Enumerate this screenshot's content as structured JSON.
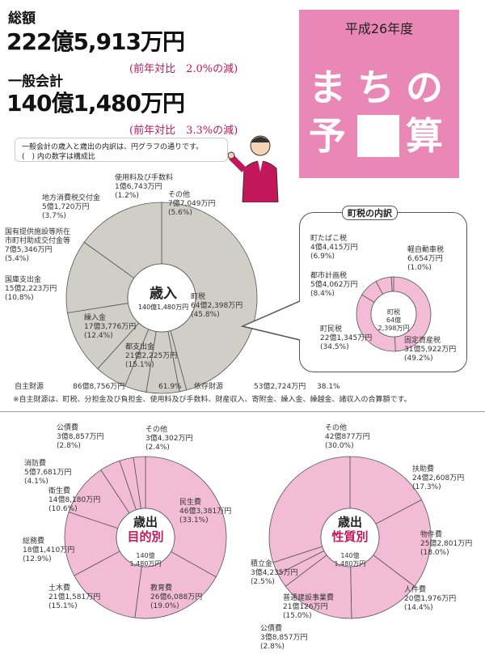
{
  "header": {
    "total_label": "総額",
    "total_amount": "222億5,913万円",
    "total_change": "(前年対比　2.0%の減)",
    "general_label": "一般会計",
    "general_amount": "140億1,480万円",
    "general_change": "(前年対比　3.3%の減)",
    "note_line1": "一般会計の歳入と歳出の内訳は、円グラフの通りです。",
    "note_line2": "(　) 内の数字は構成比"
  },
  "title_box": {
    "year": "平成26年度",
    "chars": [
      "ま",
      "ち",
      "の",
      "予",
      "算"
    ]
  },
  "revenue": {
    "center_title": "歳入",
    "center_amount": "140億1,480万円",
    "labels": [
      "使用料及び手数料\n1億6,743万円\n(1.2%)",
      "その他\n7億7,049万円\n(5.6%)",
      "地方消費税交付金\n5億1,720万円\n(3.7%)",
      "国有提供施設等所在\n市町村助成交付金等\n7億5,346万円\n(5.4%)",
      "国庫支出金\n15億2,223万円\n(10.8%)",
      "繰入金\n17億3,776万円\n(12.4%)",
      "都支出金\n21億2,225万円\n(15.1%)",
      "町税\n64億2,398万円\n(45.8%)"
    ]
  },
  "town_tax": {
    "title": "町税の内訳",
    "center": "町税\n64億\n2,398万円",
    "labels": [
      "町たばこ税\n4億4,415万円\n(6.9%)",
      "軽自動車税\n6,654万円\n(1.0%)",
      "都市計画税\n5億4,062万円\n(8.4%)",
      "町民税\n22億1,345万円\n(34.5%)",
      "固定資産税\n31億5,922万円\n(49.2%)"
    ]
  },
  "own_revenue": {
    "row": [
      "自主財源",
      "86億8,756万円",
      "61.9%",
      "依存財源",
      "53億2,724万円",
      "38.1%"
    ],
    "note": "※自主財源は、町税、分担金及び負担金、使用料及び手数料、財産収入、寄附金、繰入金、繰越金、諸収入の合算額です。"
  },
  "expenditure_purpose": {
    "center_title": "歳出",
    "center_sub": "目的別",
    "center_amount": "140億\n1,480万円",
    "labels": [
      "公債費\n3億8,857万円\n(2.8%)",
      "その他\n3億4,302万円\n(2.4%)",
      "消防費\n5億7,681万円\n(4.1%)",
      "衛生費\n14億8,180万円\n(10.6%)",
      "民生費\n46億3,381万円\n(33.1%)",
      "総務費\n18億1,410万円\n(12.9%)",
      "土木費\n21億1,581万円\n(15.1%)",
      "教育費\n26億6,088万円\n(19.0%)"
    ]
  },
  "expenditure_nature": {
    "center_title": "歳出",
    "center_sub": "性質別",
    "center_amount": "140億\n1,480万円",
    "labels": [
      "その他\n42億877万円\n(30.0%)",
      "扶助費\n24億2,608万円\n(17.3%)",
      "物件費\n25億2,801万円\n(18.0%)",
      "積立金\n3億4,235万円\n(2.5%)",
      "人件費\n20億1,976万円\n(14.4%)",
      "普通建設事業費\n21億126万円\n(15.0%)",
      "公債費\n3億8,857万円\n(2.8%)"
    ]
  },
  "chart_data": [
    {
      "type": "pie",
      "title": "歳入",
      "categories": [
        "町税",
        "使用料及び手数料",
        "その他",
        "地方消費税交付金",
        "国有提供施設等所在市町村助成交付金等",
        "国庫支出金",
        "繰入金",
        "都支出金"
      ],
      "values": [
        45.8,
        1.2,
        5.6,
        3.7,
        5.4,
        10.8,
        12.4,
        15.1
      ]
    },
    {
      "type": "pie",
      "title": "町税の内訳",
      "categories": [
        "固定資産税",
        "町民税",
        "都市計画税",
        "町たばこ税",
        "軽自動車税"
      ],
      "values": [
        49.2,
        34.5,
        8.4,
        6.9,
        1.0
      ]
    },
    {
      "type": "pie",
      "title": "歳出 目的別",
      "categories": [
        "民生費",
        "教育費",
        "土木費",
        "総務費",
        "衛生費",
        "消防費",
        "公債費",
        "その他"
      ],
      "values": [
        33.1,
        19.0,
        15.1,
        12.9,
        10.6,
        4.1,
        2.8,
        2.4
      ]
    },
    {
      "type": "pie",
      "title": "歳出 性質別",
      "categories": [
        "扶助費",
        "物件費",
        "人件費",
        "普通建設事業費",
        "公債費",
        "積立金",
        "その他"
      ],
      "values": [
        17.3,
        18.0,
        14.4,
        15.0,
        2.8,
        2.5,
        30.0
      ]
    }
  ],
  "colors": {
    "pink": "#e987b6",
    "pie_pink": "#f2bcd7",
    "gray": "#cfcfc7",
    "ink": "#111111"
  }
}
